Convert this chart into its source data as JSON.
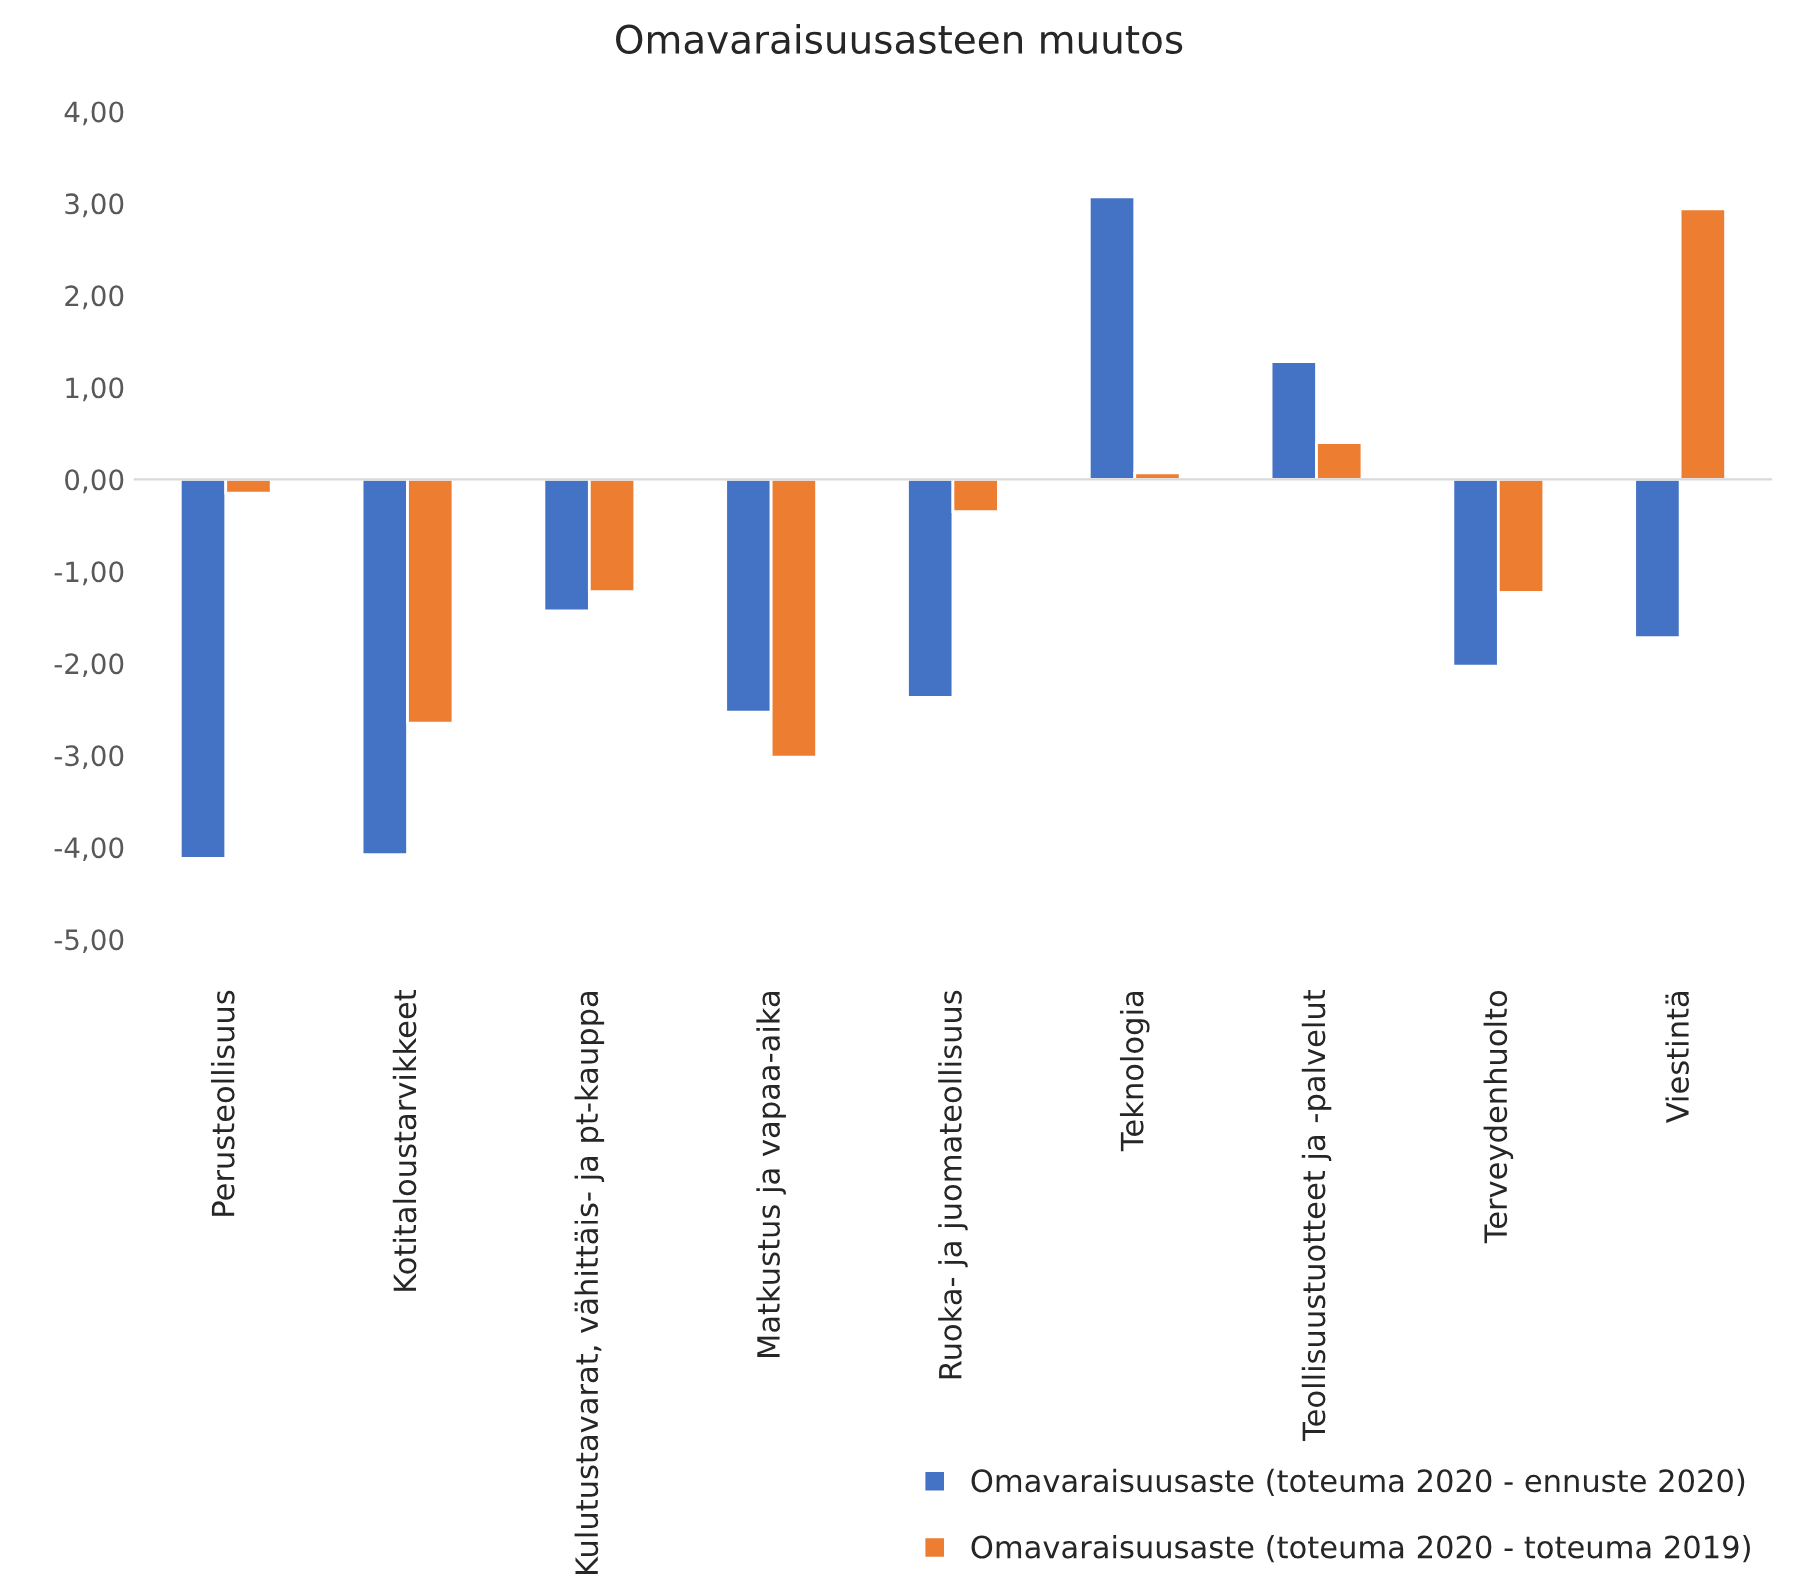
{
  "chart_data": {
    "type": "bar",
    "title": "Omavaraisuusasteen muutos",
    "categories": [
      "Perusteollisuus",
      "Kotitaloustarvikkeet",
      "Kulutustavarat, vähittäis- ja pt-kauppa",
      "Matkustus ja vapaa-aika",
      "Ruoka- ja juomateollisuus",
      "Teknologia",
      "Teollisuustuotteet ja -palvelut",
      "Terveydenhuolto",
      "Viestintä"
    ],
    "series": [
      {
        "name": "Omavaraisuusaste (toteuma 2020 - ennuste 2020)",
        "color": "#4472c4",
        "values": [
          -4.12,
          -4.08,
          -1.43,
          -2.53,
          -2.37,
          3.07,
          1.28,
          -2.03,
          -1.72
        ]
      },
      {
        "name": "Omavaraisuusaste (toteuma 2020 - toteuma 2019)",
        "color": "#ed7d31",
        "values": [
          -0.15,
          -2.65,
          -1.22,
          -3.02,
          -0.35,
          0.07,
          0.4,
          -1.23,
          2.94
        ]
      }
    ],
    "ylim": [
      -5,
      4
    ],
    "yticks": [
      {
        "value": -5,
        "label": "-5,00"
      },
      {
        "value": -4,
        "label": "-4,00"
      },
      {
        "value": -3,
        "label": "-3,00"
      },
      {
        "value": -2,
        "label": "-2,00"
      },
      {
        "value": -1,
        "label": "-1,00"
      },
      {
        "value": 0,
        "label": "0,00"
      },
      {
        "value": 1,
        "label": "1,00"
      },
      {
        "value": 2,
        "label": "2,00"
      },
      {
        "value": 3,
        "label": "3,00"
      },
      {
        "value": 4,
        "label": "4,00"
      }
    ],
    "legend": "bottom right"
  }
}
